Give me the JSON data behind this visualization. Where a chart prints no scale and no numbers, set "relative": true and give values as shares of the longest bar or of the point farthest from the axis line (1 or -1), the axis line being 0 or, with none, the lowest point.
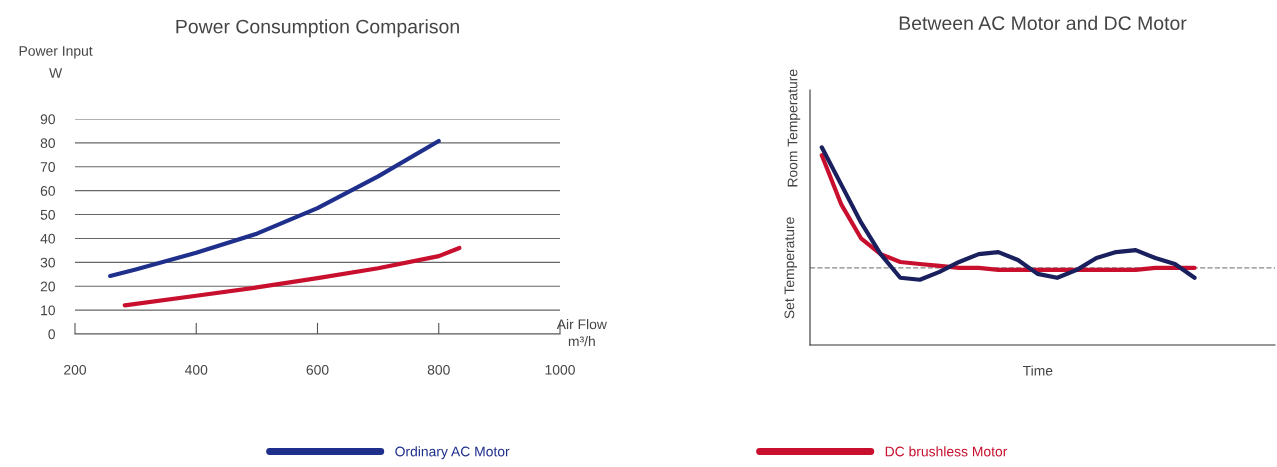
{
  "chart_data": [
    {
      "type": "line",
      "title": "Power Consumption Comparison",
      "ylabel": "Power Input\nW",
      "xlabel": "Air Flow\nm³/h",
      "xlim": [
        200,
        1000
      ],
      "xticks": [
        200,
        400,
        600,
        800,
        1000
      ],
      "ylim": [
        0,
        90
      ],
      "yticks": [
        0,
        10,
        20,
        30,
        40,
        50,
        60,
        70,
        80,
        90
      ],
      "grid": "y",
      "legend": "bottom",
      "series": [
        {
          "name": "Ordinary AC Motor",
          "color": "#1f2f8c",
          "x": [
            258,
            300,
            400,
            500,
            600,
            700,
            800
          ],
          "values": [
            24.3,
            27,
            34,
            42,
            52.7,
            66,
            80.8
          ]
        },
        {
          "name": "DC brushless Motor",
          "color": "#c8102e",
          "x": [
            282,
            400,
            500,
            600,
            700,
            800,
            834
          ],
          "values": [
            12,
            16,
            19.5,
            23.4,
            27.5,
            32.6,
            36
          ]
        }
      ]
    },
    {
      "type": "line",
      "title": "Between AC Motor and DC Motor",
      "xlabel": "Time",
      "relative": true,
      "categories": [
        null,
        null,
        null,
        null,
        null,
        null,
        null,
        null,
        null,
        null,
        null,
        null,
        null,
        null,
        null,
        null,
        null,
        null,
        null,
        null
      ],
      "annotations": [
        "Room Temperature"
      ],
      "ref_lines": [
        {
          "axis": "y",
          "value": 0.39,
          "label": "Set Temperature",
          "color": "#888888",
          "line_style": "dashed"
        }
      ],
      "series": [
        {
          "color": "#c8102e",
          "values": [
            0.96,
            0.71,
            0.54,
            0.46,
            0.42,
            0.41,
            0.4,
            0.39,
            0.39,
            0.38,
            0.38,
            0.38,
            0.38,
            0.38,
            0.38,
            0.38,
            0.38,
            0.39,
            0.39,
            0.39
          ]
        },
        {
          "color": "#1a1f5e",
          "values": [
            1,
            0.81,
            0.62,
            0.46,
            0.34,
            0.33,
            0.37,
            0.42,
            0.46,
            0.47,
            0.43,
            0.36,
            0.34,
            0.38,
            0.44,
            0.47,
            0.48,
            0.44,
            0.41,
            0.34
          ]
        }
      ]
    }
  ]
}
